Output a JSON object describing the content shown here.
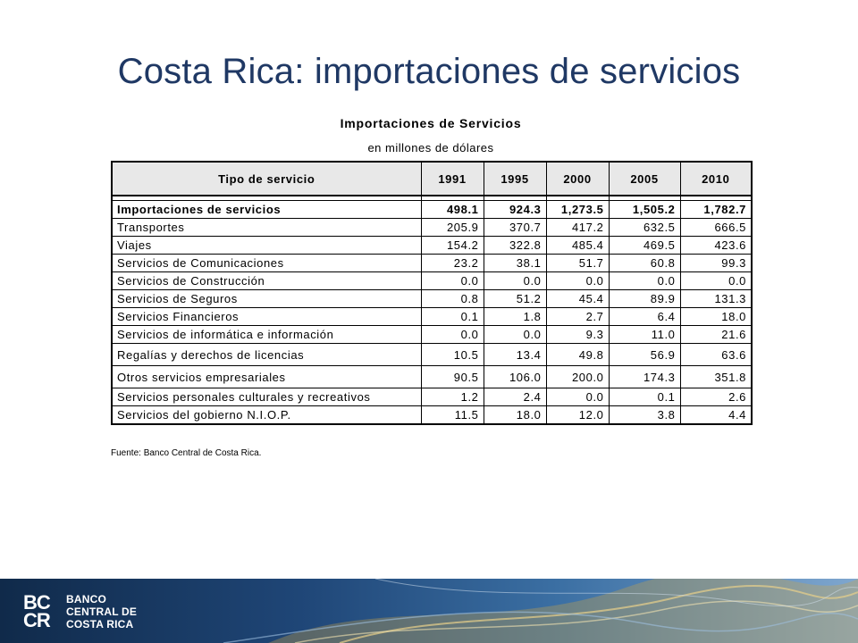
{
  "slide": {
    "title": "Costa Rica: importaciones de servicios"
  },
  "table": {
    "title": "Importaciones de Servicios",
    "subtitle": "en millones de dólares",
    "headers": [
      "Tipo de servicio",
      "1991",
      "1995",
      "2000",
      "2005",
      "2010"
    ],
    "rows": [
      {
        "label": "Importaciones de servicios",
        "values": [
          "498.1",
          "924.3",
          "1,273.5",
          "1,505.2",
          "1,782.7"
        ]
      },
      {
        "label": "Transportes",
        "values": [
          "205.9",
          "370.7",
          "417.2",
          "632.5",
          "666.5"
        ]
      },
      {
        "label": "Viajes",
        "values": [
          "154.2",
          "322.8",
          "485.4",
          "469.5",
          "423.6"
        ]
      },
      {
        "label": "Servicios de Comunicaciones",
        "values": [
          "23.2",
          "38.1",
          "51.7",
          "60.8",
          "99.3"
        ]
      },
      {
        "label": "Servicios de Construcción",
        "values": [
          "0.0",
          "0.0",
          "0.0",
          "0.0",
          "0.0"
        ]
      },
      {
        "label": "Servicios de Seguros",
        "values": [
          "0.8",
          "51.2",
          "45.4",
          "89.9",
          "131.3"
        ]
      },
      {
        "label": "Servicios Financieros",
        "values": [
          "0.1",
          "1.8",
          "2.7",
          "6.4",
          "18.0"
        ]
      },
      {
        "label": "Servicios de informática e información",
        "values": [
          "0.0",
          "0.0",
          "9.3",
          "11.0",
          "21.6"
        ]
      },
      {
        "label": "Regalías y derechos de licencias",
        "values": [
          "10.5",
          "13.4",
          "49.8",
          "56.9",
          "63.6"
        ]
      },
      {
        "label": "Otros servicios empresariales",
        "values": [
          "90.5",
          "106.0",
          "200.0",
          "174.3",
          "351.8"
        ]
      },
      {
        "label": "Servicios personales culturales y recreativos",
        "values": [
          "1.2",
          "2.4",
          "0.0",
          "0.1",
          "2.6"
        ]
      },
      {
        "label": "Servicios del gobierno N.I.O.P.",
        "values": [
          "11.5",
          "18.0",
          "12.0",
          "3.8",
          "4.4"
        ]
      }
    ]
  },
  "source": "Fuente: Banco Central de Costa Rica.",
  "logo": {
    "mark_top": "BC",
    "mark_bottom": "CR",
    "line1": "BANCO",
    "line2": "CENTRAL DE",
    "line3": "COSTA RICA"
  }
}
